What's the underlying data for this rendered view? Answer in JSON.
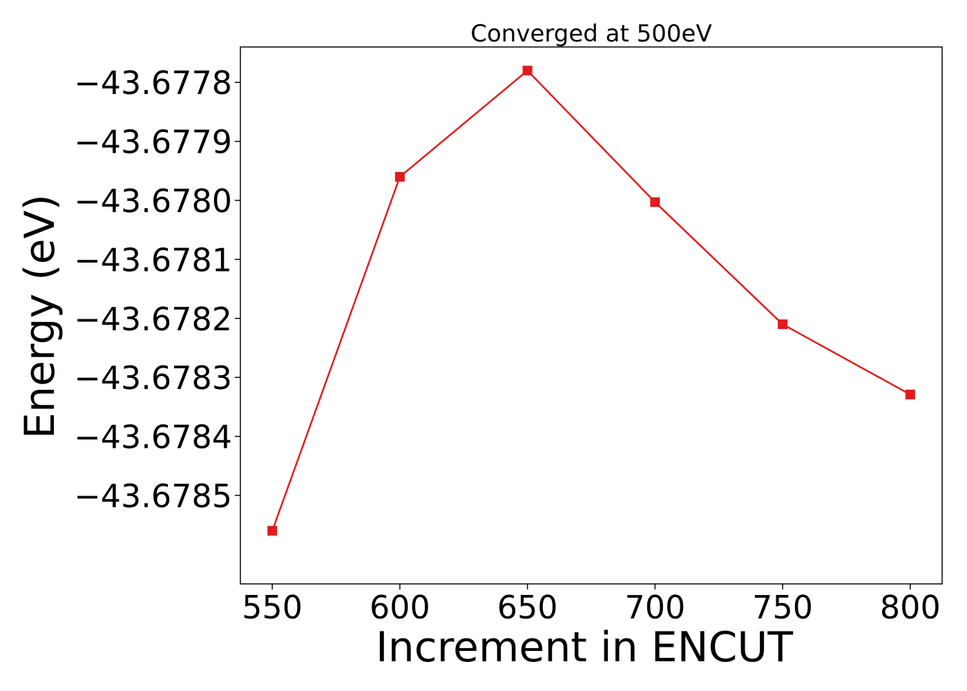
{
  "chart_data": {
    "type": "line",
    "title": "Converged at 500eV",
    "xlabel": "Increment in ENCUT",
    "ylabel": "Energy (eV)",
    "x": [
      550,
      600,
      650,
      700,
      750,
      800
    ],
    "series": [
      {
        "values": [
          -43.67856,
          -43.67796,
          -43.67778,
          -43.678003,
          -43.67821,
          -43.678329
        ],
        "color": "#e31a1c",
        "marker": "square"
      }
    ],
    "xticks": [
      550,
      600,
      650,
      700,
      750,
      800
    ],
    "xtick_labels": [
      "550",
      "600",
      "650",
      "700",
      "750",
      "800"
    ],
    "yticks": [
      -43.6778,
      -43.6779,
      -43.678,
      -43.6781,
      -43.6782,
      -43.6783,
      -43.6784,
      -43.6785
    ],
    "ytick_labels": [
      "−43.6778",
      "−43.6779",
      "−43.6780",
      "−43.6781",
      "−43.6782",
      "−43.6783",
      "−43.6784",
      "−43.6785"
    ],
    "xlim": [
      537.5,
      812.5
    ],
    "ylim": [
      -43.67865,
      -43.67774
    ],
    "grid": false,
    "legend": "none"
  }
}
